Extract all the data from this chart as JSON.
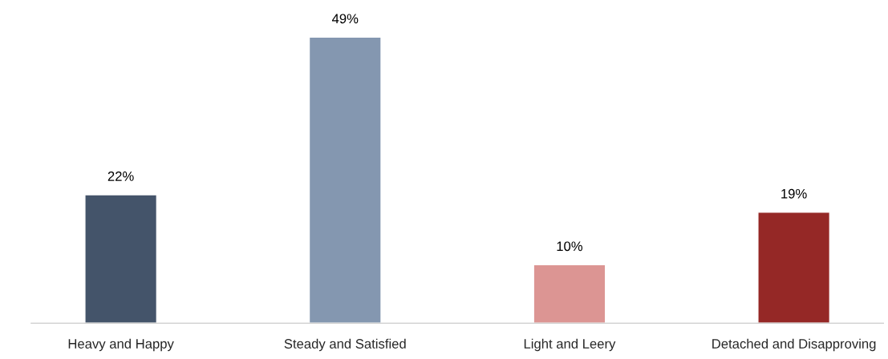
{
  "chart_data": {
    "type": "bar",
    "categories": [
      "Heavy and Happy",
      "Steady and Satisfied",
      "Light and Leery",
      "Detached and Disapproving"
    ],
    "values": [
      22,
      49,
      10,
      19
    ],
    "colors": [
      "#44546a",
      "#8497b0",
      "#dc9593",
      "#952826"
    ],
    "value_labels": [
      "22%",
      "49%",
      "10%",
      "19%"
    ],
    "grid": false,
    "legend": false
  }
}
